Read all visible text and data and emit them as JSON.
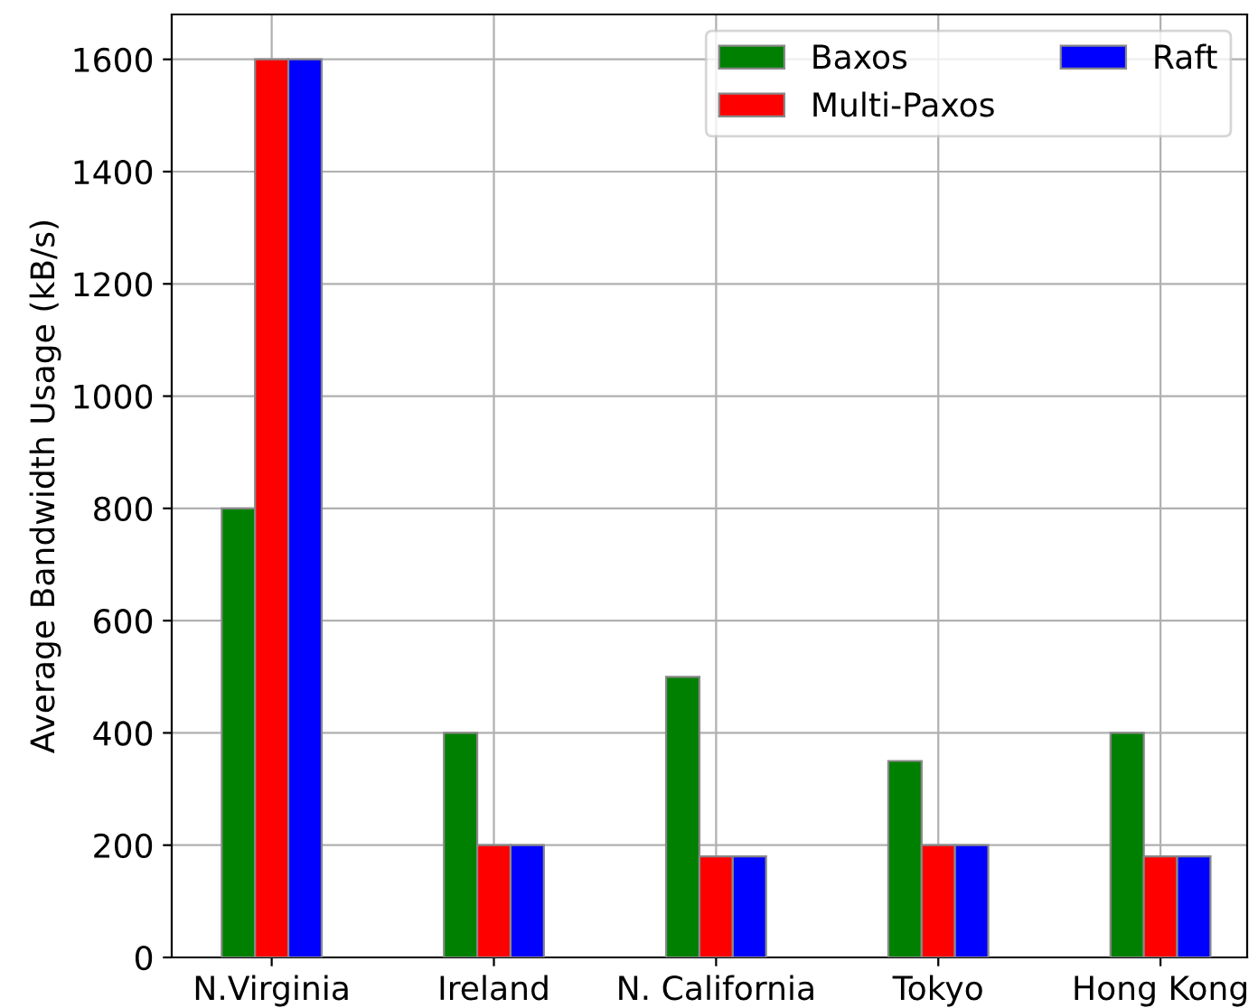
{
  "chart_data": {
    "type": "bar",
    "ylabel": "Average Bandwidth Usage (kB/s)",
    "categories": [
      "N.Virginia",
      "Ireland",
      "N. California",
      "Tokyo",
      "Hong Kong"
    ],
    "series": [
      {
        "name": "Baxos",
        "color": "#008000",
        "values": [
          800,
          400,
          500,
          350,
          400
        ]
      },
      {
        "name": "Multi-Paxos",
        "color": "#ff0000",
        "values": [
          1600,
          200,
          180,
          200,
          180
        ]
      },
      {
        "name": "Raft",
        "color": "#0000ff",
        "values": [
          1600,
          200,
          180,
          200,
          180
        ]
      }
    ],
    "ylim": [
      0,
      1680
    ],
    "yticks": [
      0,
      200,
      400,
      600,
      800,
      1000,
      1200,
      1400,
      1600
    ],
    "grid": true,
    "legend": "top right"
  }
}
